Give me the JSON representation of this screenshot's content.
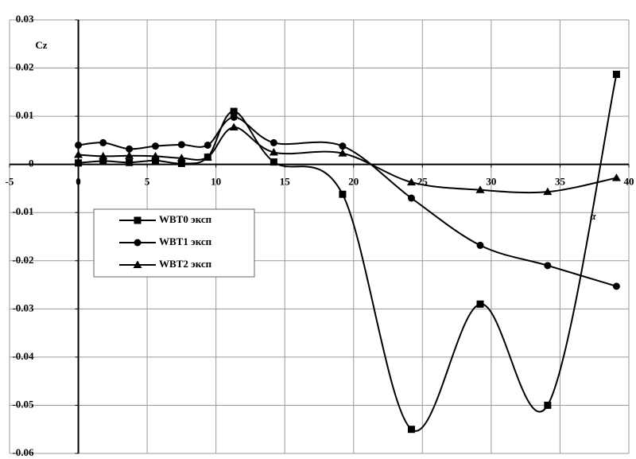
{
  "chart_data": {
    "type": "line",
    "y_label": "Cz",
    "x_label": "α",
    "x": [
      0,
      1.8,
      3.7,
      5.6,
      7.5,
      9.4,
      11.3,
      14.2,
      19.2,
      24.2,
      29.2,
      34.1,
      39.1
    ],
    "series": [
      {
        "name": "WBT0 эксп",
        "color": "#000000",
        "marker": "square",
        "values": [
          0.0003,
          0.0007,
          0.0004,
          0.0008,
          0.0002,
          0.0015,
          0.011,
          0.0005,
          -0.0062,
          -0.055,
          -0.029,
          -0.05,
          0.0187
        ]
      },
      {
        "name": "WBT1 эксп",
        "color": "#000000",
        "marker": "circle",
        "values": [
          0.004,
          0.0045,
          0.0032,
          0.0038,
          0.0041,
          0.004,
          0.0098,
          0.0045,
          0.0038,
          -0.007,
          -0.0168,
          -0.021,
          -0.0253
        ]
      },
      {
        "name": "WBT2 эксп",
        "color": "#000000",
        "marker": "triangle",
        "values": [
          0.002,
          0.0017,
          0.0018,
          0.0017,
          0.0013,
          0.0015,
          0.0077,
          0.0025,
          0.0023,
          -0.0037,
          -0.0053,
          -0.0057,
          -0.0028
        ]
      }
    ],
    "xlim": [
      -5,
      40
    ],
    "xticks": [
      -5,
      0,
      5,
      10,
      15,
      20,
      25,
      30,
      35,
      40
    ],
    "ylim": [
      -0.06,
      0.03
    ],
    "yticks": [
      -0.06,
      -0.05,
      -0.04,
      -0.03,
      -0.02,
      -0.01,
      0,
      0.01,
      0.02,
      0.03
    ],
    "grid": true
  }
}
